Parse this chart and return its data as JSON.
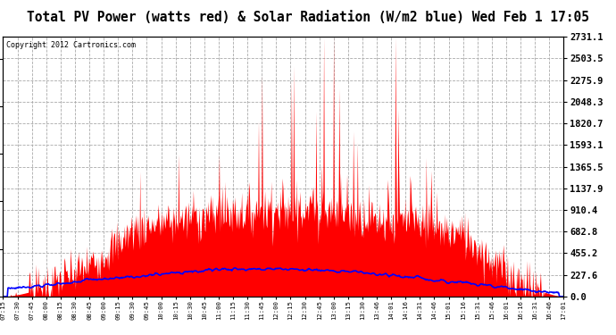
{
  "title": "Total PV Power (watts red) & Solar Radiation (W/m2 blue) Wed Feb 1 17:05",
  "copyright": "Copyright 2012 Cartronics.com",
  "yticks": [
    0.0,
    227.6,
    455.2,
    682.8,
    910.4,
    1137.9,
    1365.5,
    1593.1,
    1820.7,
    2048.3,
    2275.9,
    2503.5,
    2731.1
  ],
  "ytick_labels": [
    "0.0",
    "227.6",
    "455.2",
    "682.8",
    "910.4",
    "1137.9",
    "1365.5",
    "1593.1",
    "1820.7",
    "2048.3",
    "2275.9",
    "2503.5",
    "2731.1"
  ],
  "ymax": 2731.1,
  "ymin": 0.0,
  "xtick_labels": [
    "07:15",
    "07:30",
    "07:45",
    "08:00",
    "08:15",
    "08:30",
    "08:45",
    "09:00",
    "09:15",
    "09:30",
    "09:45",
    "10:00",
    "10:15",
    "10:30",
    "10:45",
    "11:00",
    "11:15",
    "11:30",
    "11:45",
    "12:00",
    "12:15",
    "12:30",
    "12:45",
    "13:00",
    "13:15",
    "13:30",
    "13:46",
    "14:01",
    "14:16",
    "14:31",
    "14:46",
    "15:01",
    "15:16",
    "15:31",
    "15:46",
    "16:01",
    "16:16",
    "16:31",
    "16:46",
    "17:01"
  ],
  "plot_bg_color": "#ffffff",
  "grid_color": "#aaaaaa",
  "red_color": "#ff0000",
  "blue_color": "#0000ff",
  "text_color": "#000000",
  "axis_bg": "#ffffff",
  "copyright_color": "#000000"
}
